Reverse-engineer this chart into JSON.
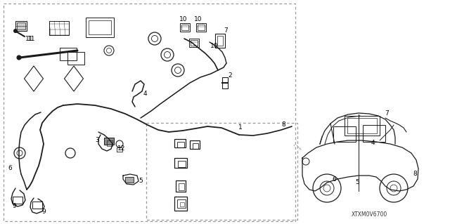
{
  "bg_color": "#ffffff",
  "fig_width": 6.4,
  "fig_height": 3.19,
  "dpi": 100,
  "diagram_code": "XTXM0V6700",
  "lc": "#1a1a1a",
  "dc": "#999999",
  "fs": 6.5
}
